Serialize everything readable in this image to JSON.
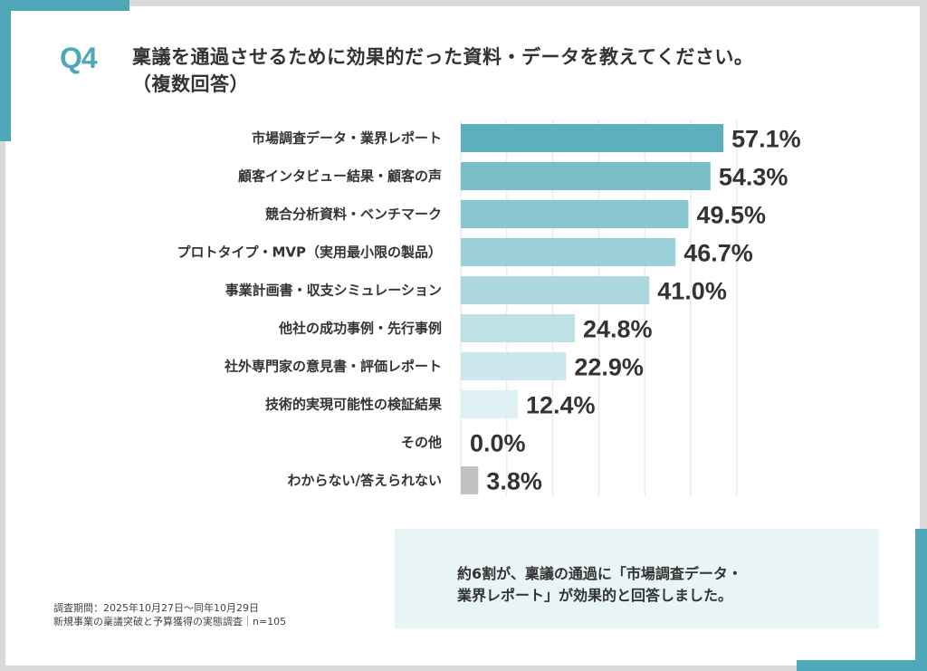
{
  "header": {
    "question_number": "Q4",
    "title_line1": "稟議を通過させるために効果的だった資料・データを教えてください。",
    "title_line2": "（複数回答）"
  },
  "chart_data": {
    "type": "bar",
    "orientation": "horizontal",
    "title": "稟議を通過させるために効果的だった資料・データを教えてください。（複数回答）",
    "xlabel": "",
    "ylabel": "",
    "xlim": [
      0,
      60
    ],
    "grid": true,
    "unit": "%",
    "categories": [
      "市場調査データ・業界レポート",
      "顧客インタビュー結果・顧客の声",
      "競合分析資料・ベンチマーク",
      "プロトタイプ・MVP（実用最小限の製品）",
      "事業計画書・収支シミュレーション",
      "他社の成功事例・先行事例",
      "社外専門家の意見書・評価レポート",
      "技術的実現可能性の検証結果",
      "その他",
      "わからない/答えられない"
    ],
    "values": [
      57.1,
      54.3,
      49.5,
      46.7,
      41.0,
      24.8,
      22.9,
      12.4,
      0.0,
      3.8
    ],
    "value_labels": [
      "57.1%",
      "54.3%",
      "49.5%",
      "46.7%",
      "41.0%",
      "24.8%",
      "22.9%",
      "12.4%",
      "0.0%",
      "3.8%"
    ],
    "colors": [
      "#4ea8b8",
      "#6fb9c4",
      "#80c1cb",
      "#93cbd4",
      "#a5d5db",
      "#b8dee3",
      "#c9e6ea",
      "#dbeff2",
      "#e6f3f5",
      "#bdbdbd"
    ]
  },
  "summary": {
    "line1": "約6割が、稟議の通過に「市場調査データ・",
    "line2": "業界レポート」が効果的と回答しました。"
  },
  "footnote": {
    "period": "調査期間：2025年10月27日〜同年10月29日",
    "survey": "新規事業の稟議突破と予算獲得の実態調査｜n=105"
  },
  "theme": {
    "accent": "#4ea8b8",
    "text": "#333333",
    "summary_bg": "#e8f4f5",
    "grid": "#e3e3e3"
  }
}
